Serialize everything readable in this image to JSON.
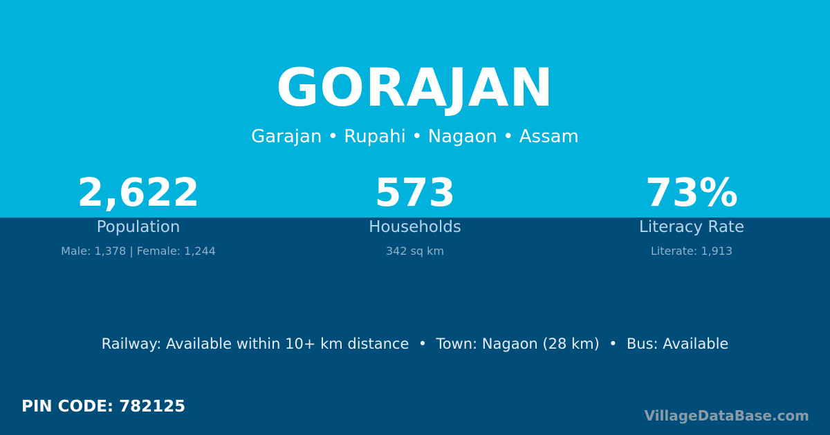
{
  "title": "GORAJAN",
  "subtitle": "Garajan • Rupahi • Nagaon • Assam",
  "stats": [
    {
      "value": "2,622",
      "label": "Population",
      "detail": "Male: 1,378 | Female: 1,244"
    },
    {
      "value": "573",
      "label": "Households",
      "detail": "342 sq km"
    },
    {
      "value": "73%",
      "label": "Literacy Rate",
      "detail": "Literate: 1,913"
    }
  ],
  "connectivity": "Railway: Available within 10+ km distance  •  Town: Nagaon (28 km)  •  Bus: Available",
  "pin": "PIN CODE: 782125",
  "brand": "VillageDataBase.com",
  "colors": {
    "top": "#00b2dc",
    "bottom": "#004d7a"
  }
}
